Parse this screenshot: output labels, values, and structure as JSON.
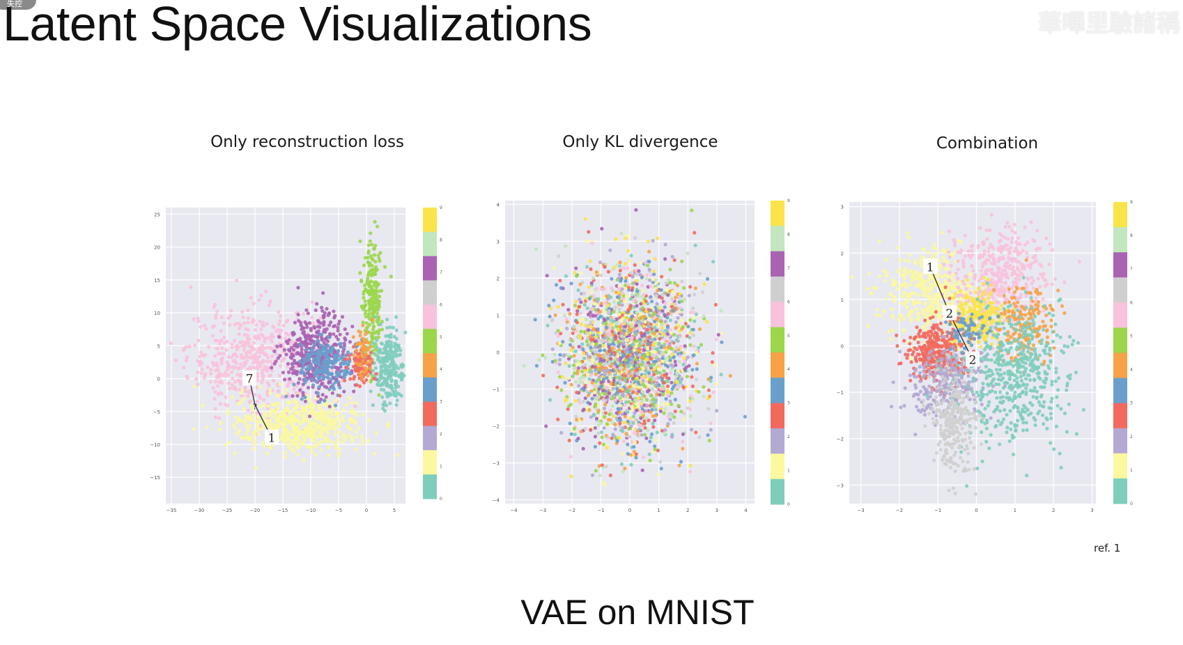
{
  "slide": {
    "badge": "失控",
    "title": "Latent Space Visualizations",
    "watermark": "華嗶里驗諸稱",
    "reference": "ref. 1",
    "caption": "VAE on MNIST"
  },
  "colors": {
    "background_plot": "#e8e8f1",
    "grid": "#ffffff",
    "digit_colors": [
      "#7fcdbb",
      "#fbf8a0",
      "#b3a9d3",
      "#f26a5e",
      "#6a9fcc",
      "#f7a246",
      "#9bd64b",
      "#f8c2dc",
      "#cfcfcf",
      "#a963b2",
      "#c2e6bd",
      "#fbe34a"
    ]
  },
  "chart_data": [
    {
      "type": "scatter",
      "title": "Only reconstruction loss",
      "xlim": [
        -36,
        7
      ],
      "ylim": [
        -19,
        26
      ],
      "xticks": [
        -35,
        -30,
        -25,
        -20,
        -15,
        -10,
        -5,
        0,
        5
      ],
      "yticks": [
        -15,
        -10,
        -5,
        0,
        5,
        10,
        15,
        20,
        25
      ],
      "grid": true,
      "colorbar_ticks": [
        "0",
        "1",
        "2",
        "3",
        "4",
        "5",
        "6",
        "7",
        "8",
        "9"
      ],
      "clusters": [
        {
          "digit": 7,
          "center": [
            -20,
            3
          ],
          "spread": [
            6,
            4
          ],
          "count": 520
        },
        {
          "digit": 1,
          "center": [
            -12,
            -7
          ],
          "spread": [
            6,
            2.2
          ],
          "count": 520
        },
        {
          "digit": 9,
          "center": [
            -9,
            4
          ],
          "spread": [
            3,
            3
          ],
          "count": 420
        },
        {
          "digit": 4,
          "center": [
            -7,
            2
          ],
          "spread": [
            2.5,
            2
          ],
          "count": 220
        },
        {
          "digit": 6,
          "center": [
            1,
            12
          ],
          "spread": [
            0.9,
            5
          ],
          "count": 220
        },
        {
          "digit": 0,
          "center": [
            4,
            2
          ],
          "spread": [
            1.4,
            3
          ],
          "count": 260
        },
        {
          "digit": 3,
          "center": [
            -1,
            2
          ],
          "spread": [
            1.2,
            1.5
          ],
          "count": 90
        },
        {
          "digit": 5,
          "center": [
            -0.5,
            4
          ],
          "spread": [
            0.8,
            2
          ],
          "count": 50
        }
      ],
      "annotations": [
        {
          "text": "7",
          "x": -21,
          "y": 0
        },
        {
          "text": "?",
          "x": -20,
          "y": -4
        },
        {
          "text": "1",
          "x": -17,
          "y": -9
        }
      ]
    },
    {
      "type": "scatter",
      "title": "Only KL divergence",
      "xlim": [
        -4.3,
        4.3
      ],
      "ylim": [
        -4.1,
        4.1
      ],
      "xticks": [
        -4,
        -3,
        -2,
        -1,
        0,
        1,
        2,
        3,
        4
      ],
      "yticks": [
        -4,
        -3,
        -2,
        -1,
        0,
        1,
        2,
        3,
        4
      ],
      "grid": true,
      "colorbar_ticks": [
        "0",
        "1",
        "2",
        "3",
        "4",
        "5",
        "6",
        "7",
        "8",
        "9"
      ],
      "clusters": [
        {
          "digit": -1,
          "center": [
            0,
            -0.1
          ],
          "spread": [
            1.1,
            1.2
          ],
          "count": 2400
        }
      ],
      "annotations": []
    },
    {
      "type": "scatter",
      "title": "Combination",
      "xlim": [
        -3.3,
        3.1
      ],
      "ylim": [
        -3.4,
        3.1
      ],
      "xticks": [
        -3,
        -2,
        -1,
        0,
        1,
        2,
        3
      ],
      "yticks": [
        -3,
        -2,
        -1,
        0,
        1,
        2,
        3
      ],
      "grid": true,
      "colorbar_ticks": [
        "0",
        "1",
        "2",
        "3",
        "4",
        "5",
        "6",
        "7",
        "8",
        "9"
      ],
      "clusters": [
        {
          "digit": 1,
          "center": [
            -1.2,
            1.1
          ],
          "spread": [
            0.6,
            0.5
          ],
          "count": 420
        },
        {
          "digit": 7,
          "center": [
            0.6,
            1.5
          ],
          "spread": [
            0.6,
            0.55
          ],
          "count": 420
        },
        {
          "digit": 11,
          "center": [
            0,
            0.6
          ],
          "spread": [
            0.35,
            0.3
          ],
          "count": 260
        },
        {
          "digit": 5,
          "center": [
            1.3,
            0.5
          ],
          "spread": [
            0.4,
            0.4
          ],
          "count": 180
        },
        {
          "digit": 3,
          "center": [
            -1,
            -0.1
          ],
          "spread": [
            0.4,
            0.35
          ],
          "count": 330
        },
        {
          "digit": 2,
          "center": [
            -0.8,
            -0.8
          ],
          "spread": [
            0.5,
            0.4
          ],
          "count": 260
        },
        {
          "digit": 0,
          "center": [
            1,
            -0.7
          ],
          "spread": [
            0.65,
            0.75
          ],
          "count": 520
        },
        {
          "digit": 8,
          "center": [
            -0.6,
            -1.6
          ],
          "spread": [
            0.3,
            0.6
          ],
          "count": 260
        },
        {
          "digit": 4,
          "center": [
            -0.2,
            0.3
          ],
          "spread": [
            0.3,
            0.2
          ],
          "count": 60
        }
      ],
      "annotations": [
        {
          "text": "1",
          "x": -1.2,
          "y": 1.7
        },
        {
          "text": "2",
          "x": -0.7,
          "y": 0.7
        },
        {
          "text": "2",
          "x": -0.1,
          "y": -0.3
        }
      ]
    }
  ]
}
